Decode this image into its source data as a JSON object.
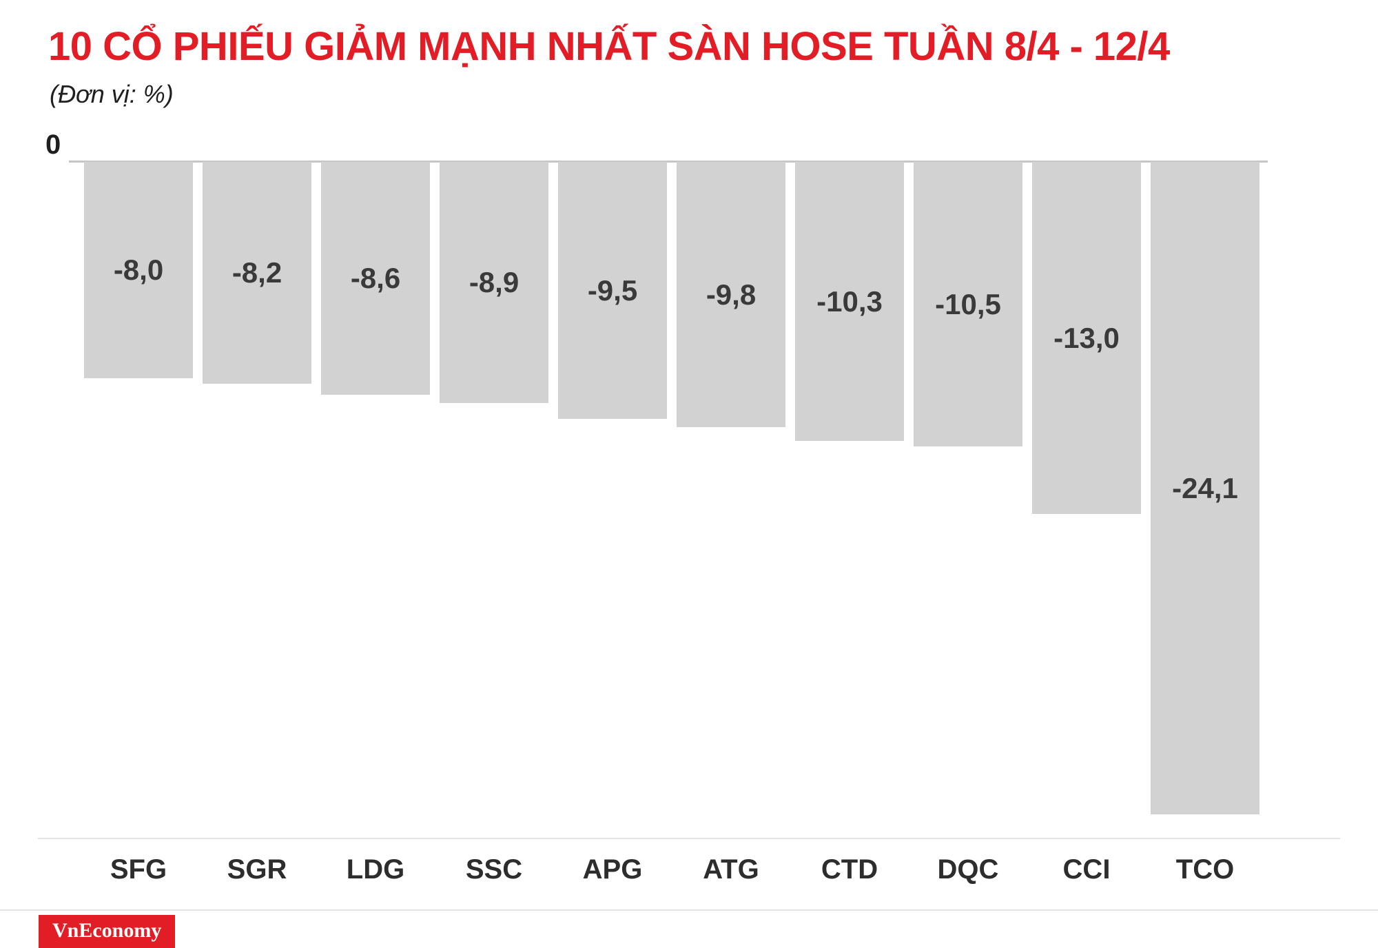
{
  "title": "10 CỔ PHIẾU GIẢM MẠNH NHẤT SÀN HOSE TUẦN 8/4 - 12/4",
  "subtitle": "(Đơn vị: %)",
  "axis": {
    "zero_label": "0"
  },
  "chart_data": {
    "type": "bar",
    "title": "10 CỔ PHIẾU GIẢM MẠNH NHẤT SÀN HOSE TUẦN 8/4 - 12/4",
    "unit": "%",
    "categories": [
      "SFG",
      "SGR",
      "LDG",
      "SSC",
      "APG",
      "ATG",
      "CTD",
      "DQC",
      "CCI",
      "TCO"
    ],
    "values": [
      -8.0,
      -8.2,
      -8.6,
      -8.9,
      -9.5,
      -9.8,
      -10.3,
      -10.5,
      -13.0,
      -24.1
    ],
    "value_labels": [
      "-8,0",
      "-8,2",
      "-8,6",
      "-8,9",
      "-9,5",
      "-9,8",
      "-10,3",
      "-10,5",
      "-13,0",
      "-24,1"
    ],
    "xlabel": "",
    "ylabel": "%",
    "ylim": [
      -25,
      0
    ],
    "grid": false,
    "legend": "none",
    "bar_color": "#d2d2d2"
  },
  "colors": {
    "accent_red": "#e31d25",
    "bar_gray": "#d2d2d2",
    "label_dark": "#3a3a3a",
    "brand_text": "#ffffff"
  },
  "footer": {
    "brand": "VnEconomy"
  }
}
